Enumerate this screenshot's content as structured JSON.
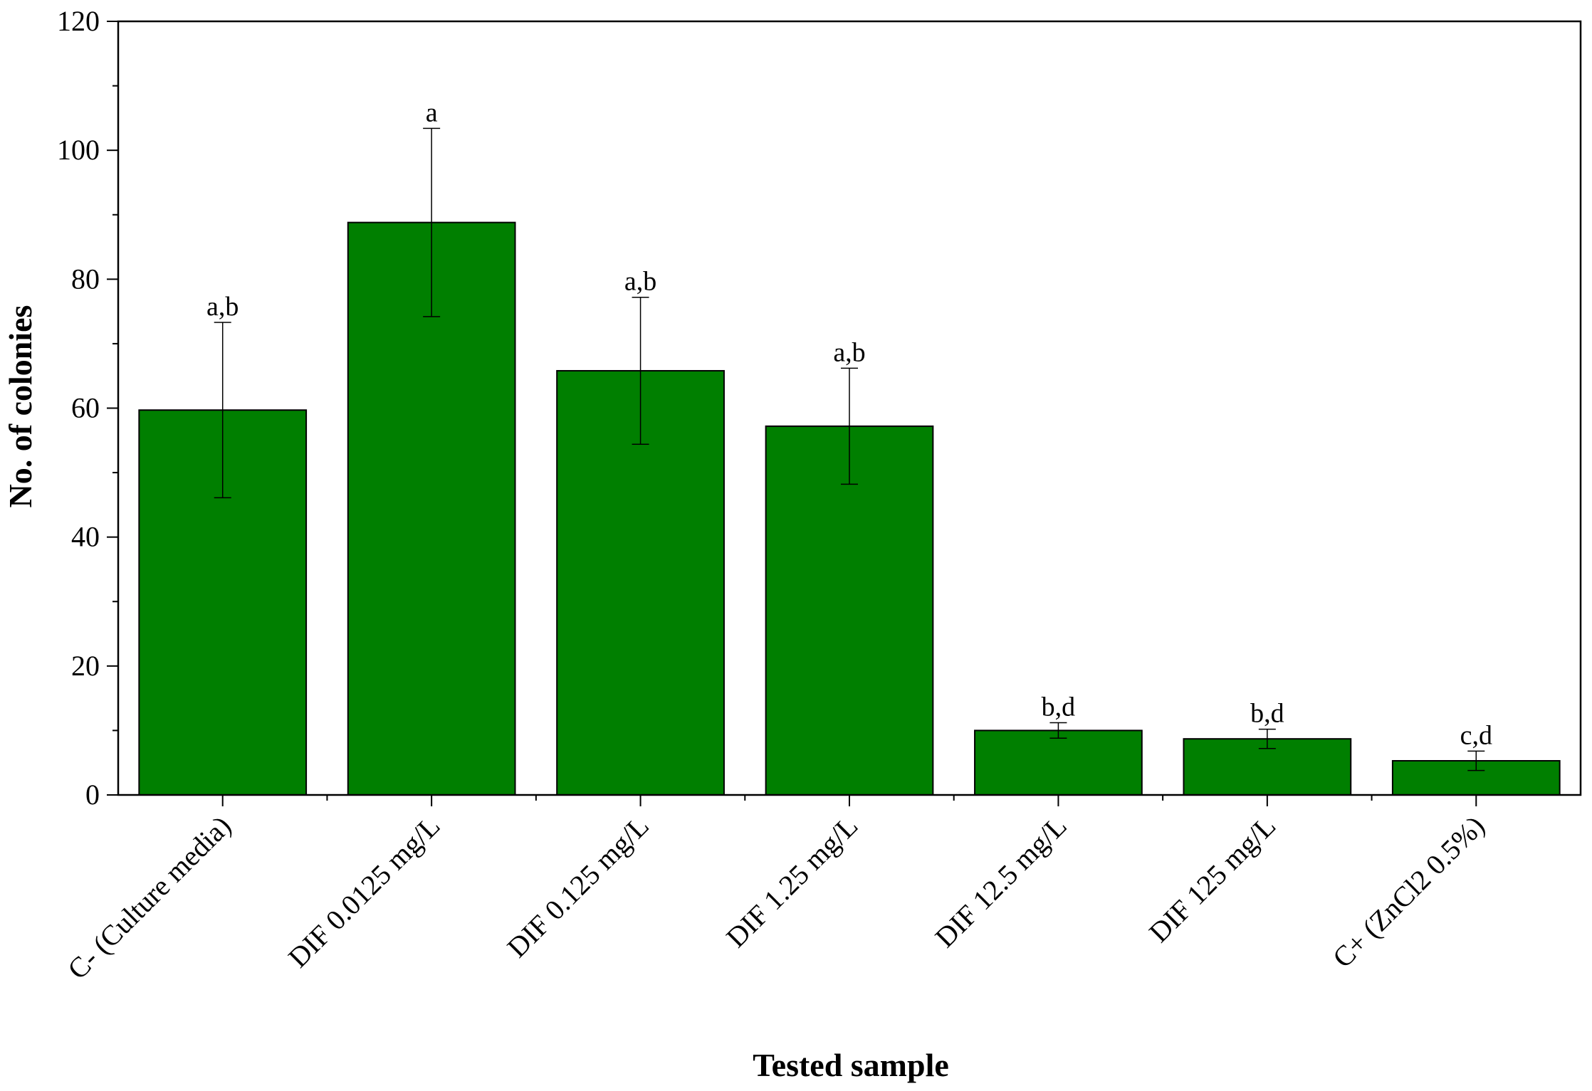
{
  "chart_data": {
    "type": "bar",
    "title": "",
    "xlabel": "Tested sample",
    "ylabel": "No. of colonies",
    "ylim": [
      0,
      120
    ],
    "yticks": [
      0,
      20,
      40,
      60,
      80,
      100,
      120
    ],
    "grid": false,
    "legend": "none",
    "categories": [
      "C- (Culture media)",
      "DIF 0.0125 mg/L",
      "DIF 0.125 mg/L",
      "DIF 1.25 mg/L",
      "DIF 12.5 mg/L",
      "DIF 125 mg/L",
      "C+ (ZnCl2 0.5%)"
    ],
    "values": [
      59.7,
      88.8,
      65.8,
      57.2,
      10.0,
      8.7,
      5.3
    ],
    "error": [
      13.6,
      14.6,
      11.4,
      9.0,
      1.2,
      1.5,
      1.5
    ],
    "significance_labels": [
      "a,b",
      "a",
      "a,b",
      "a,b",
      "b,d",
      "b,d",
      "c,d"
    ],
    "colors": {
      "bar": "#007f00",
      "bar_edge": "#000000"
    }
  }
}
